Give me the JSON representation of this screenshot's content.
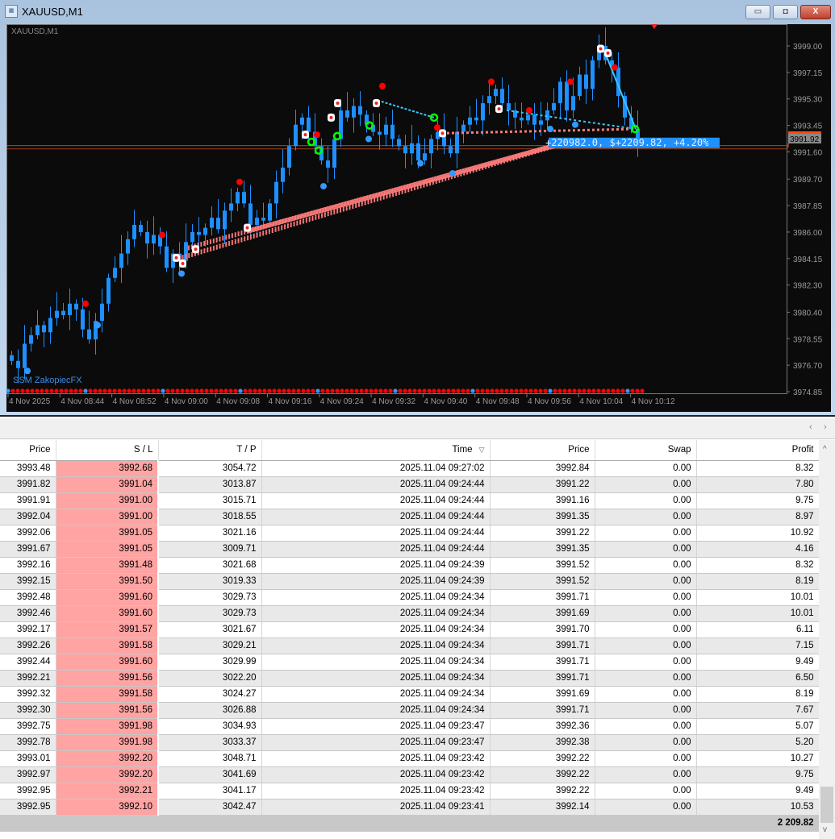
{
  "window": {
    "title": "XAUUSD,M1",
    "minimize": "▭",
    "restore": "◘",
    "close": "X"
  },
  "chart": {
    "symbol_label": "XAUUSD,M1",
    "indicator_label": "SSM ZakopiecFX",
    "price_ticks": [
      "3999.00",
      "3997.15",
      "3995.30",
      "3993.45",
      "3991.60",
      "3989.70",
      "3987.85",
      "3986.00",
      "3984.15",
      "3982.30",
      "3980.40",
      "3978.55",
      "3976.70",
      "3974.85"
    ],
    "time_ticks": [
      "4 Nov 2025",
      "4 Nov 08:44",
      "4 Nov 08:52",
      "4 Nov 09:00",
      "4 Nov 09:08",
      "4 Nov 09:16",
      "4 Nov 09:24",
      "4 Nov 09:32",
      "4 Nov 09:40",
      "4 Nov 09:48",
      "4 Nov 09:56",
      "4 Nov 10:04",
      "4 Nov 10:12"
    ],
    "current_price": "3991.92",
    "summary_label": "+220982.0, $+2209.82, +4.20%",
    "colors": {
      "bull": "#1e90ff",
      "bear": "#1e90ff",
      "background": "#0b0b0b",
      "label_bg": "#1e90ff",
      "sl_line": "#ff7b7b",
      "tp_line": "#3cc8ff",
      "up_marker": "#ff0000",
      "down_marker": "#3399ff",
      "close_marker": "#00ff00"
    },
    "closes": [
      3977.0,
      3976.5,
      3978.2,
      3978.8,
      3979.5,
      3979.0,
      3980.0,
      3980.5,
      3980.2,
      3981.0,
      3980.6,
      3979.2,
      3978.5,
      3979.8,
      3981.0,
      3982.8,
      3983.5,
      3984.5,
      3985.5,
      3986.5,
      3986.0,
      3985.2,
      3985.8,
      3985.0,
      3983.5,
      3984.5,
      3984.0,
      3985.3,
      3986.0,
      3985.8,
      3986.3,
      3987.0,
      3986.2,
      3987.5,
      3988.0,
      3988.8,
      3988.0,
      3986.5,
      3987.0,
      3986.8,
      3988.0,
      3989.5,
      3990.5,
      3992.0,
      3993.5,
      3994.0,
      3993.0,
      3992.0,
      3991.0,
      3990.5,
      3992.5,
      3994.5,
      3994.0,
      3994.8,
      3994.2,
      3993.5,
      3993.0,
      3992.8,
      3993.5,
      3992.5,
      3992.0,
      3991.5,
      3992.2,
      3991.0,
      3991.5,
      3992.5,
      3993.0,
      3992.0,
      3991.5,
      3993.0,
      3993.5,
      3994.0,
      3993.8,
      3995.0,
      3995.5,
      3996.0,
      3995.0,
      3994.5,
      3994.0,
      3993.8,
      3994.2,
      3993.5,
      3993.8,
      3994.5,
      3995.0,
      3996.5,
      3994.5,
      3995.5,
      3997.0,
      3996.0,
      3998.0,
      3999.0,
      3998.0,
      3997.5,
      3995.5,
      3994.0,
      3993.2,
      3992.3
    ]
  },
  "table": {
    "headers": [
      "Price",
      "S / L",
      "T / P",
      "Time",
      "Price",
      "Swap",
      "Profit"
    ],
    "sort_indicator": "▽",
    "rows": [
      [
        "3993.48",
        "3992.68",
        "3054.72",
        "2025.11.04 09:27:02",
        "3992.84",
        "0.00",
        "8.32"
      ],
      [
        "3991.82",
        "3991.04",
        "3013.87",
        "2025.11.04 09:24:44",
        "3991.22",
        "0.00",
        "7.80"
      ],
      [
        "3991.91",
        "3991.00",
        "3015.71",
        "2025.11.04 09:24:44",
        "3991.16",
        "0.00",
        "9.75"
      ],
      [
        "3992.04",
        "3991.00",
        "3018.55",
        "2025.11.04 09:24:44",
        "3991.35",
        "0.00",
        "8.97"
      ],
      [
        "3992.06",
        "3991.05",
        "3021.16",
        "2025.11.04 09:24:44",
        "3991.22",
        "0.00",
        "10.92"
      ],
      [
        "3991.67",
        "3991.05",
        "3009.71",
        "2025.11.04 09:24:44",
        "3991.35",
        "0.00",
        "4.16"
      ],
      [
        "3992.16",
        "3991.48",
        "3021.68",
        "2025.11.04 09:24:39",
        "3991.52",
        "0.00",
        "8.32"
      ],
      [
        "3992.15",
        "3991.50",
        "3019.33",
        "2025.11.04 09:24:39",
        "3991.52",
        "0.00",
        "8.19"
      ],
      [
        "3992.48",
        "3991.60",
        "3029.73",
        "2025.11.04 09:24:34",
        "3991.71",
        "0.00",
        "10.01"
      ],
      [
        "3992.46",
        "3991.60",
        "3029.73",
        "2025.11.04 09:24:34",
        "3991.69",
        "0.00",
        "10.01"
      ],
      [
        "3992.17",
        "3991.57",
        "3021.67",
        "2025.11.04 09:24:34",
        "3991.70",
        "0.00",
        "6.11"
      ],
      [
        "3992.26",
        "3991.58",
        "3029.21",
        "2025.11.04 09:24:34",
        "3991.71",
        "0.00",
        "7.15"
      ],
      [
        "3992.44",
        "3991.60",
        "3029.99",
        "2025.11.04 09:24:34",
        "3991.71",
        "0.00",
        "9.49"
      ],
      [
        "3992.21",
        "3991.56",
        "3022.20",
        "2025.11.04 09:24:34",
        "3991.71",
        "0.00",
        "6.50"
      ],
      [
        "3992.32",
        "3991.58",
        "3024.27",
        "2025.11.04 09:24:34",
        "3991.69",
        "0.00",
        "8.19"
      ],
      [
        "3992.30",
        "3991.56",
        "3026.88",
        "2025.11.04 09:24:34",
        "3991.71",
        "0.00",
        "7.67"
      ],
      [
        "3992.75",
        "3991.98",
        "3034.93",
        "2025.11.04 09:23:47",
        "3992.36",
        "0.00",
        "5.07"
      ],
      [
        "3992.78",
        "3991.98",
        "3033.37",
        "2025.11.04 09:23:47",
        "3992.38",
        "0.00",
        "5.20"
      ],
      [
        "3993.01",
        "3992.20",
        "3048.71",
        "2025.11.04 09:23:42",
        "3992.22",
        "0.00",
        "10.27"
      ],
      [
        "3992.97",
        "3992.20",
        "3041.69",
        "2025.11.04 09:23:42",
        "3992.22",
        "0.00",
        "9.75"
      ],
      [
        "3992.95",
        "3992.21",
        "3041.17",
        "2025.11.04 09:23:42",
        "3992.22",
        "0.00",
        "9.49"
      ],
      [
        "3992.95",
        "3992.10",
        "3042.47",
        "2025.11.04 09:23:41",
        "3992.14",
        "0.00",
        "10.53"
      ]
    ],
    "total_profit": "2 209.82"
  },
  "nav": {
    "left": "‹",
    "right": "›",
    "up": "^",
    "down": "v"
  }
}
